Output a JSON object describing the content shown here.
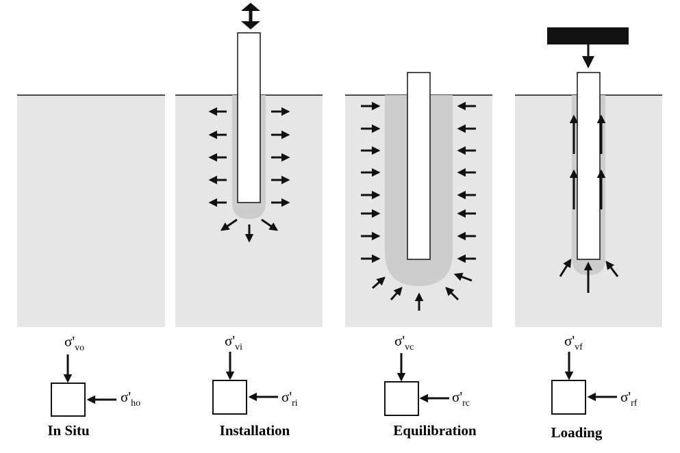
{
  "figure": {
    "panels": [
      {
        "id": "in-situ",
        "label": "In Situ",
        "vertical_stress": {
          "symbol": "σ'",
          "subscript": "vo"
        },
        "horizontal_stress": {
          "symbol": "σ'",
          "subscript": "ho"
        }
      },
      {
        "id": "installation",
        "label": "Installation",
        "vertical_stress": {
          "symbol": "σ'",
          "subscript": "vi"
        },
        "horizontal_stress": {
          "symbol": "σ'",
          "subscript": "ri"
        }
      },
      {
        "id": "equilibration",
        "label": "Equilibration",
        "vertical_stress": {
          "symbol": "σ'",
          "subscript": "vc"
        },
        "horizontal_stress": {
          "symbol": "σ'",
          "subscript": "rc"
        }
      },
      {
        "id": "loading",
        "label": "Loading",
        "vertical_stress": {
          "symbol": "σ'",
          "subscript": "vf"
        },
        "horizontal_stress": {
          "symbol": "σ'",
          "subscript": "rf"
        }
      }
    ],
    "colors": {
      "soil": "#e6e6e6",
      "disturbed_zone": "#cdcdcd",
      "pile": "#ffffff",
      "ink": "#111111"
    }
  }
}
